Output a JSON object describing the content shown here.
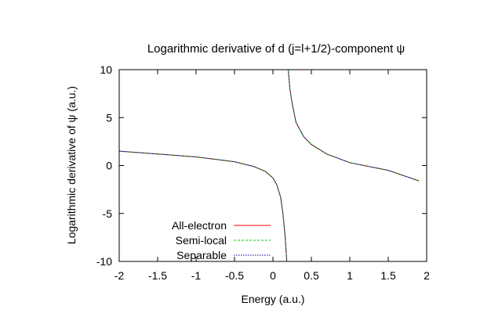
{
  "chart_data": {
    "type": "line",
    "title": "Logarithmic derivative of d (j=l+1/2)-component ψ",
    "xlabel": "Energy (a.u.)",
    "ylabel": "Logarithmic derivative of ψ (a.u.)",
    "xlim": [
      -2,
      2
    ],
    "ylim": [
      -10,
      10
    ],
    "xticks": [
      "-2",
      "-1.5",
      "-1",
      "-0.5",
      "0",
      "0.5",
      "1",
      "1.5",
      "2"
    ],
    "yticks": [
      "10",
      "5",
      "0",
      "-5",
      "-10"
    ],
    "grid": false,
    "legend_position": "bottom-left",
    "series": [
      {
        "name": "All-electron",
        "color": "#ff0000",
        "dash": "solid",
        "x": [
          -2,
          -1.5,
          -1,
          -0.5,
          -0.25,
          -0.1,
          0,
          0.05,
          0.1,
          0.13,
          0.16,
          0.18,
          null,
          0.2,
          0.22,
          0.25,
          0.3,
          0.4,
          0.5,
          0.7,
          1.0,
          1.5,
          1.9
        ],
        "y": [
          1.5,
          1.2,
          0.9,
          0.4,
          -0.1,
          -0.6,
          -1.3,
          -2.0,
          -3.3,
          -5.0,
          -7.5,
          -10,
          null,
          10,
          8.0,
          6.5,
          4.5,
          3.0,
          2.2,
          1.2,
          0.3,
          -0.5,
          -1.6
        ]
      },
      {
        "name": "Semi-local",
        "color": "#00c800",
        "dash": "dashed",
        "x": [
          -2,
          -1.5,
          -1,
          -0.5,
          -0.25,
          -0.1,
          0,
          0.05,
          0.1,
          0.13,
          0.16,
          0.18,
          null,
          0.2,
          0.22,
          0.25,
          0.3,
          0.4,
          0.5,
          0.7,
          1.0,
          1.5,
          1.9
        ],
        "y": [
          1.5,
          1.2,
          0.9,
          0.4,
          -0.1,
          -0.6,
          -1.3,
          -2.0,
          -3.3,
          -5.0,
          -7.5,
          -10,
          null,
          10,
          8.0,
          6.5,
          4.5,
          3.0,
          2.2,
          1.2,
          0.3,
          -0.5,
          -1.6
        ]
      },
      {
        "name": "Separable",
        "color": "#0000a0",
        "dash": "dotted",
        "x": [
          -2,
          -1.5,
          -1,
          -0.5,
          -0.25,
          -0.1,
          0,
          0.05,
          0.1,
          0.13,
          0.16,
          0.18,
          null,
          0.2,
          0.22,
          0.25,
          0.3,
          0.4,
          0.5,
          0.7,
          1.0,
          1.5,
          1.9
        ],
        "y": [
          1.5,
          1.2,
          0.9,
          0.4,
          -0.1,
          -0.6,
          -1.3,
          -2.0,
          -3.3,
          -5.0,
          -7.5,
          -10,
          null,
          10,
          8.0,
          6.5,
          4.5,
          3.0,
          2.2,
          1.2,
          0.3,
          -0.5,
          -1.6
        ]
      }
    ]
  }
}
